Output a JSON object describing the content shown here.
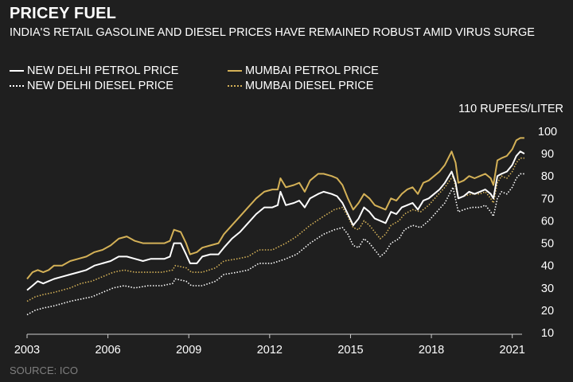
{
  "title": "PRICEY FUEL",
  "subtitle": "INDIA'S RETAIL GASOLINE AND DIESEL PRICES HAVE REMAINED ROBUST AMID VIRUS SURGE",
  "unit_label": "110 RUPEES/LITER",
  "source": "SOURCE: ICO",
  "colors": {
    "white": "#ffffff",
    "gold": "#d4b157",
    "background": "#1f1f1f",
    "axis": "#cccccc"
  },
  "chart_data": {
    "type": "line",
    "title": "PRICEY FUEL",
    "xlabel": "",
    "ylabel": "110 RUPEES/LITER",
    "xlim": [
      2003,
      2021.6
    ],
    "ylim": [
      10,
      110
    ],
    "x_ticks": [
      2003,
      2006,
      2009,
      2012,
      2015,
      2018,
      2021
    ],
    "y_ticks": [
      10,
      20,
      30,
      40,
      50,
      60,
      70,
      80,
      90,
      100
    ],
    "legend_position": "top-left",
    "series": [
      {
        "name": "NEW DELHI PETROL PRICE",
        "color": "#ffffff",
        "style": "solid",
        "points": [
          [
            2003.0,
            29
          ],
          [
            2003.2,
            31
          ],
          [
            2003.4,
            33
          ],
          [
            2003.6,
            32
          ],
          [
            2003.8,
            33
          ],
          [
            2004.0,
            34
          ],
          [
            2004.3,
            35
          ],
          [
            2004.6,
            36
          ],
          [
            2004.9,
            37
          ],
          [
            2005.2,
            38
          ],
          [
            2005.5,
            40
          ],
          [
            2005.8,
            41
          ],
          [
            2006.1,
            42
          ],
          [
            2006.4,
            44
          ],
          [
            2006.7,
            44
          ],
          [
            2007.0,
            43
          ],
          [
            2007.3,
            42
          ],
          [
            2007.6,
            43
          ],
          [
            2007.9,
            43
          ],
          [
            2008.1,
            43
          ],
          [
            2008.3,
            44
          ],
          [
            2008.45,
            50
          ],
          [
            2008.7,
            50
          ],
          [
            2008.9,
            45
          ],
          [
            2009.05,
            41
          ],
          [
            2009.3,
            41
          ],
          [
            2009.5,
            44
          ],
          [
            2009.8,
            45
          ],
          [
            2010.1,
            45
          ],
          [
            2010.3,
            48
          ],
          [
            2010.6,
            52
          ],
          [
            2010.9,
            55
          ],
          [
            2011.2,
            59
          ],
          [
            2011.5,
            63
          ],
          [
            2011.8,
            66
          ],
          [
            2012.1,
            66
          ],
          [
            2012.3,
            67
          ],
          [
            2012.4,
            73
          ],
          [
            2012.6,
            67
          ],
          [
            2012.9,
            68
          ],
          [
            2013.1,
            69
          ],
          [
            2013.3,
            66
          ],
          [
            2013.5,
            70
          ],
          [
            2013.8,
            72
          ],
          [
            2014.0,
            73
          ],
          [
            2014.3,
            72
          ],
          [
            2014.5,
            71
          ],
          [
            2014.7,
            68
          ],
          [
            2014.9,
            63
          ],
          [
            2015.1,
            58
          ],
          [
            2015.3,
            61
          ],
          [
            2015.5,
            66
          ],
          [
            2015.7,
            64
          ],
          [
            2015.9,
            61
          ],
          [
            2016.1,
            60
          ],
          [
            2016.3,
            59
          ],
          [
            2016.5,
            64
          ],
          [
            2016.7,
            63
          ],
          [
            2016.9,
            66
          ],
          [
            2017.1,
            67
          ],
          [
            2017.3,
            68
          ],
          [
            2017.5,
            65
          ],
          [
            2017.7,
            69
          ],
          [
            2017.9,
            70
          ],
          [
            2018.1,
            72
          ],
          [
            2018.3,
            74
          ],
          [
            2018.5,
            77
          ],
          [
            2018.75,
            82
          ],
          [
            2018.9,
            77
          ],
          [
            2019.0,
            70
          ],
          [
            2019.2,
            71
          ],
          [
            2019.4,
            73
          ],
          [
            2019.6,
            72
          ],
          [
            2019.8,
            73
          ],
          [
            2020.0,
            74
          ],
          [
            2020.2,
            72
          ],
          [
            2020.3,
            70
          ],
          [
            2020.45,
            80
          ],
          [
            2020.6,
            81
          ],
          [
            2020.8,
            82
          ],
          [
            2021.0,
            85
          ],
          [
            2021.15,
            89
          ],
          [
            2021.3,
            91
          ],
          [
            2021.45,
            90
          ]
        ]
      },
      {
        "name": "MUMBAI PETROL PRICE",
        "color": "#d4b157",
        "style": "solid",
        "points": [
          [
            2003.0,
            34
          ],
          [
            2003.2,
            37
          ],
          [
            2003.4,
            38
          ],
          [
            2003.6,
            37
          ],
          [
            2003.8,
            38
          ],
          [
            2004.0,
            40
          ],
          [
            2004.3,
            40
          ],
          [
            2004.6,
            42
          ],
          [
            2004.9,
            43
          ],
          [
            2005.2,
            44
          ],
          [
            2005.5,
            46
          ],
          [
            2005.8,
            47
          ],
          [
            2006.1,
            49
          ],
          [
            2006.4,
            52
          ],
          [
            2006.7,
            53
          ],
          [
            2007.0,
            51
          ],
          [
            2007.3,
            50
          ],
          [
            2007.6,
            50
          ],
          [
            2007.9,
            50
          ],
          [
            2008.1,
            50
          ],
          [
            2008.3,
            51
          ],
          [
            2008.45,
            56
          ],
          [
            2008.7,
            55
          ],
          [
            2008.9,
            50
          ],
          [
            2009.05,
            45
          ],
          [
            2009.3,
            46
          ],
          [
            2009.5,
            48
          ],
          [
            2009.8,
            49
          ],
          [
            2010.1,
            50
          ],
          [
            2010.3,
            54
          ],
          [
            2010.6,
            58
          ],
          [
            2010.9,
            62
          ],
          [
            2011.2,
            66
          ],
          [
            2011.5,
            70
          ],
          [
            2011.8,
            73
          ],
          [
            2012.1,
            74
          ],
          [
            2012.3,
            74
          ],
          [
            2012.4,
            79
          ],
          [
            2012.6,
            75
          ],
          [
            2012.9,
            76
          ],
          [
            2013.1,
            77
          ],
          [
            2013.3,
            73
          ],
          [
            2013.5,
            78
          ],
          [
            2013.8,
            81
          ],
          [
            2014.0,
            81
          ],
          [
            2014.3,
            80
          ],
          [
            2014.5,
            79
          ],
          [
            2014.7,
            76
          ],
          [
            2014.9,
            70
          ],
          [
            2015.1,
            65
          ],
          [
            2015.3,
            68
          ],
          [
            2015.5,
            72
          ],
          [
            2015.7,
            70
          ],
          [
            2015.9,
            67
          ],
          [
            2016.1,
            66
          ],
          [
            2016.3,
            65
          ],
          [
            2016.5,
            70
          ],
          [
            2016.7,
            69
          ],
          [
            2016.9,
            72
          ],
          [
            2017.1,
            74
          ],
          [
            2017.3,
            75
          ],
          [
            2017.5,
            72
          ],
          [
            2017.7,
            77
          ],
          [
            2017.9,
            78
          ],
          [
            2018.1,
            80
          ],
          [
            2018.3,
            82
          ],
          [
            2018.5,
            85
          ],
          [
            2018.75,
            91
          ],
          [
            2018.9,
            86
          ],
          [
            2019.0,
            77
          ],
          [
            2019.2,
            78
          ],
          [
            2019.4,
            80
          ],
          [
            2019.6,
            79
          ],
          [
            2019.8,
            80
          ],
          [
            2020.0,
            81
          ],
          [
            2020.2,
            79
          ],
          [
            2020.3,
            76
          ],
          [
            2020.45,
            87
          ],
          [
            2020.6,
            88
          ],
          [
            2020.8,
            89
          ],
          [
            2021.0,
            92
          ],
          [
            2021.15,
            96
          ],
          [
            2021.3,
            97
          ],
          [
            2021.45,
            97
          ]
        ]
      },
      {
        "name": "NEW DELHI DIESEL PRICE",
        "color": "#ffffff",
        "style": "dotted",
        "points": [
          [
            2003.0,
            18
          ],
          [
            2003.3,
            20
          ],
          [
            2003.6,
            21
          ],
          [
            2004.0,
            22
          ],
          [
            2004.3,
            23
          ],
          [
            2004.6,
            24
          ],
          [
            2005.0,
            25
          ],
          [
            2005.4,
            26
          ],
          [
            2005.8,
            28
          ],
          [
            2006.2,
            30
          ],
          [
            2006.6,
            31
          ],
          [
            2007.0,
            30
          ],
          [
            2007.5,
            31
          ],
          [
            2008.0,
            31
          ],
          [
            2008.4,
            32
          ],
          [
            2008.5,
            34
          ],
          [
            2008.9,
            33
          ],
          [
            2009.1,
            31
          ],
          [
            2009.5,
            31
          ],
          [
            2010.0,
            33
          ],
          [
            2010.3,
            36
          ],
          [
            2010.8,
            37
          ],
          [
            2011.2,
            38
          ],
          [
            2011.6,
            41
          ],
          [
            2012.1,
            41
          ],
          [
            2012.6,
            43
          ],
          [
            2013.0,
            45
          ],
          [
            2013.5,
            50
          ],
          [
            2014.0,
            54
          ],
          [
            2014.4,
            56
          ],
          [
            2014.7,
            57
          ],
          [
            2014.9,
            54
          ],
          [
            2015.1,
            49
          ],
          [
            2015.3,
            48
          ],
          [
            2015.5,
            52
          ],
          [
            2015.7,
            50
          ],
          [
            2015.9,
            47
          ],
          [
            2016.1,
            44
          ],
          [
            2016.3,
            46
          ],
          [
            2016.5,
            50
          ],
          [
            2016.8,
            52
          ],
          [
            2017.0,
            56
          ],
          [
            2017.3,
            58
          ],
          [
            2017.6,
            57
          ],
          [
            2017.9,
            60
          ],
          [
            2018.2,
            64
          ],
          [
            2018.5,
            68
          ],
          [
            2018.8,
            75
          ],
          [
            2019.0,
            64
          ],
          [
            2019.2,
            65
          ],
          [
            2019.5,
            66
          ],
          [
            2019.8,
            66
          ],
          [
            2020.0,
            67
          ],
          [
            2020.2,
            64
          ],
          [
            2020.3,
            62
          ],
          [
            2020.45,
            70
          ],
          [
            2020.6,
            73
          ],
          [
            2020.8,
            72
          ],
          [
            2021.0,
            75
          ],
          [
            2021.15,
            79
          ],
          [
            2021.3,
            81
          ],
          [
            2021.45,
            81
          ]
        ]
      },
      {
        "name": "MUMBAI DIESEL PRICE",
        "color": "#d4b157",
        "style": "dotted",
        "points": [
          [
            2003.0,
            24
          ],
          [
            2003.3,
            26
          ],
          [
            2003.6,
            27
          ],
          [
            2004.0,
            28
          ],
          [
            2004.3,
            29
          ],
          [
            2004.6,
            30
          ],
          [
            2005.0,
            32
          ],
          [
            2005.4,
            33
          ],
          [
            2005.8,
            35
          ],
          [
            2006.2,
            37
          ],
          [
            2006.6,
            38
          ],
          [
            2007.0,
            37
          ],
          [
            2007.5,
            37
          ],
          [
            2008.0,
            37
          ],
          [
            2008.4,
            38
          ],
          [
            2008.5,
            40
          ],
          [
            2008.9,
            39
          ],
          [
            2009.1,
            37
          ],
          [
            2009.5,
            37
          ],
          [
            2010.0,
            39
          ],
          [
            2010.3,
            42
          ],
          [
            2010.8,
            43
          ],
          [
            2011.2,
            44
          ],
          [
            2011.6,
            47
          ],
          [
            2012.1,
            47
          ],
          [
            2012.6,
            50
          ],
          [
            2013.0,
            53
          ],
          [
            2013.5,
            58
          ],
          [
            2014.0,
            62
          ],
          [
            2014.4,
            65
          ],
          [
            2014.7,
            66
          ],
          [
            2014.9,
            62
          ],
          [
            2015.1,
            57
          ],
          [
            2015.3,
            56
          ],
          [
            2015.5,
            60
          ],
          [
            2015.7,
            58
          ],
          [
            2015.9,
            55
          ],
          [
            2016.1,
            52
          ],
          [
            2016.3,
            54
          ],
          [
            2016.5,
            58
          ],
          [
            2016.8,
            60
          ],
          [
            2017.0,
            63
          ],
          [
            2017.3,
            65
          ],
          [
            2017.6,
            64
          ],
          [
            2017.9,
            67
          ],
          [
            2018.2,
            71
          ],
          [
            2018.5,
            75
          ],
          [
            2018.8,
            80
          ],
          [
            2019.0,
            70
          ],
          [
            2019.2,
            71
          ],
          [
            2019.5,
            72
          ],
          [
            2019.8,
            72
          ],
          [
            2020.0,
            73
          ],
          [
            2020.2,
            70
          ],
          [
            2020.3,
            68
          ],
          [
            2020.45,
            77
          ],
          [
            2020.6,
            80
          ],
          [
            2020.8,
            79
          ],
          [
            2021.0,
            82
          ],
          [
            2021.15,
            86
          ],
          [
            2021.3,
            88
          ],
          [
            2021.45,
            88
          ]
        ]
      }
    ]
  }
}
